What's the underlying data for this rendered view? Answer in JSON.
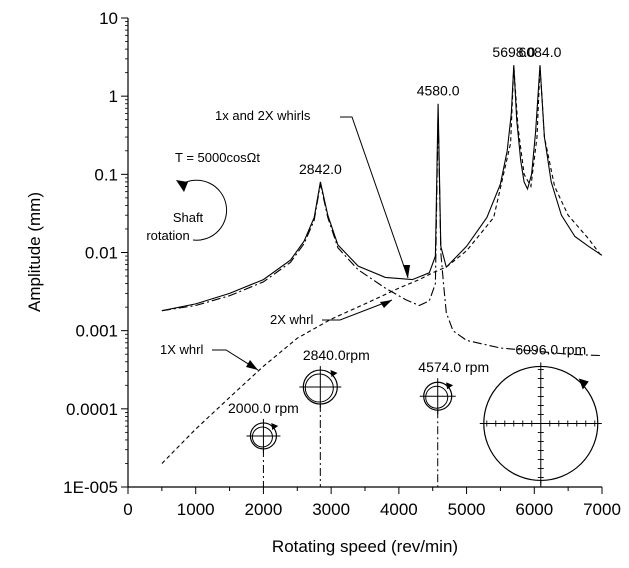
{
  "chart_data": {
    "type": "line",
    "title": "",
    "xlabel": "Rotating speed (rev/min)",
    "ylabel": "Amplitude (mm)",
    "xlim": [
      0,
      7000
    ],
    "ylim": [
      1e-05,
      10
    ],
    "y_scale": "log",
    "grid": false,
    "x_ticks": [
      "0",
      "1000",
      "2000",
      "3000",
      "4000",
      "5000",
      "6000",
      "7000"
    ],
    "y_ticks": [
      {
        "value": 10,
        "label": "10"
      },
      {
        "value": 1,
        "label": "1"
      },
      {
        "value": 0.1,
        "label": "0.1"
      },
      {
        "value": 0.01,
        "label": "0.01"
      },
      {
        "value": 0.001,
        "label": "0.001"
      },
      {
        "value": 0.0001,
        "label": "0.0001"
      },
      {
        "value": 1e-05,
        "label": "1E-005"
      }
    ],
    "series": [
      {
        "style": "solid",
        "x": [
          500,
          1000,
          1500,
          2000,
          2400,
          2600,
          2750,
          2842,
          2950,
          3100,
          3400,
          3800,
          4200,
          4450,
          4540,
          4580,
          4620,
          4700,
          5000,
          5300,
          5500,
          5600,
          5660,
          5698,
          5740,
          5800,
          5850,
          5900,
          5960,
          6020,
          6084,
          6150,
          6250,
          6400,
          6600,
          6800,
          7000
        ],
        "y": [
          0.0018,
          0.0022,
          0.003,
          0.0045,
          0.008,
          0.014,
          0.028,
          0.08,
          0.03,
          0.0125,
          0.0067,
          0.0048,
          0.0045,
          0.0055,
          0.009,
          0.8,
          0.012,
          0.0065,
          0.012,
          0.028,
          0.075,
          0.2,
          0.6,
          2.5,
          0.5,
          0.15,
          0.08,
          0.065,
          0.1,
          0.35,
          2.5,
          0.3,
          0.08,
          0.03,
          0.016,
          0.012,
          0.0092
        ]
      },
      {
        "style": "dashdot",
        "x": [
          500,
          1000,
          1500,
          2000,
          2400,
          2600,
          2750,
          2842,
          2950,
          3100,
          3400,
          3800,
          4100,
          4300,
          4450,
          4540,
          4580,
          4620,
          4660,
          4700,
          4800,
          5000,
          5500,
          6000,
          6500,
          7000
        ],
        "y": [
          0.0018,
          0.0021,
          0.0028,
          0.0042,
          0.0075,
          0.013,
          0.026,
          0.075,
          0.028,
          0.0115,
          0.006,
          0.0035,
          0.0025,
          0.0021,
          0.0024,
          0.004,
          0.6,
          0.01,
          0.004,
          0.0017,
          0.001,
          0.00075,
          0.0006,
          0.00055,
          0.0005,
          0.00048
        ]
      },
      {
        "style": "dashed",
        "x": [
          500,
          1000,
          1500,
          2000,
          2500,
          3000,
          3500,
          4000,
          4300,
          4500,
          4600,
          4700,
          5000,
          5400,
          5650,
          5698,
          5760,
          5850,
          5950,
          6040,
          6084,
          6150,
          6300,
          6500,
          6800,
          7000
        ],
        "y": [
          2e-05,
          5.5e-05,
          0.00014,
          0.00035,
          0.0008,
          0.0014,
          0.0022,
          0.0035,
          0.0045,
          0.0055,
          0.006,
          0.0065,
          0.0105,
          0.028,
          0.25,
          2.4,
          0.4,
          0.1,
          0.07,
          0.3,
          2.4,
          0.3,
          0.07,
          0.03,
          0.015,
          0.0088
        ]
      }
    ],
    "peak_labels": [
      {
        "text": "2842.0",
        "x": 2842,
        "y": 0.08
      },
      {
        "text": "4580.0",
        "x": 4580,
        "y": 0.8
      },
      {
        "text": "5698.0",
        "x": 5698,
        "y": 2.5
      },
      {
        "text": "6084.0",
        "x": 6084,
        "y": 2.5
      }
    ],
    "annotations": {
      "whirls": "1x and 2X whirls",
      "whrl2": "2X whrl",
      "whrl1": "1X whrl",
      "torque": "T = 5000cosΩt",
      "shaft_line1": "Shaft",
      "shaft_line2": "rotation"
    },
    "orbits": [
      {
        "label": "2000.0 rpm",
        "x": 2000,
        "y": 4.5e-05
      },
      {
        "label": "2840.0rpm",
        "x": 2840,
        "y": 0.00019
      },
      {
        "label": "4574.0 rpm",
        "x": 4574,
        "y": 0.000145
      },
      {
        "label": "6096.0 rpm",
        "x": 6096,
        "y": 6.5e-05
      }
    ]
  }
}
